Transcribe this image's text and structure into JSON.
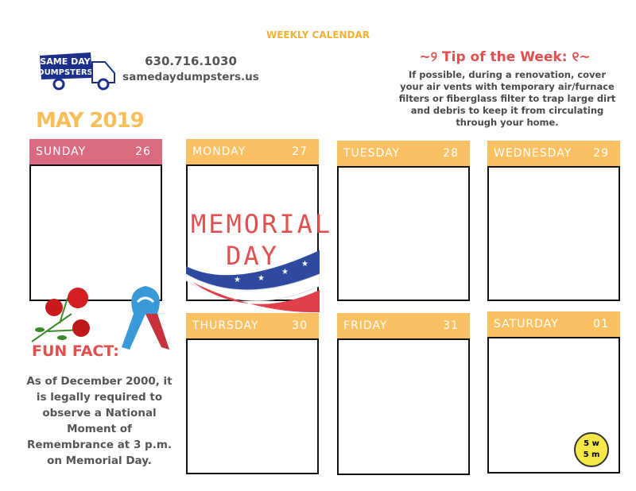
{
  "header": {
    "title": "WEEKLY CALENDAR",
    "phone": "630.716.1030",
    "website": "samedaydumpsters.us",
    "logo_text": "SAME DAY DUMPSTERS",
    "month": "MAY 2019"
  },
  "tip": {
    "title": "Tip of the Week:",
    "text": "If possible, during a renovation, cover your air vents with temporary air/furnace filters or fiberglass filter to trap large dirt and debris to keep it from circulating through your home."
  },
  "days": [
    {
      "name": "SUNDAY",
      "date": "26"
    },
    {
      "name": "MONDAY",
      "date": "27"
    },
    {
      "name": "TUESDAY",
      "date": "28"
    },
    {
      "name": "WEDNESDAY",
      "date": "29"
    },
    {
      "name": "THURSDAY",
      "date": "30"
    },
    {
      "name": "FRIDAY",
      "date": "31"
    },
    {
      "name": "SATURDAY",
      "date": "01"
    }
  ],
  "memorial": {
    "line1": "MEMORIAL",
    "line2": "DAY"
  },
  "fun_fact": {
    "title": "FUN FACT:",
    "text": "As of December 2000, it is legally required to observe a National Moment of Remembrance at 3 p.m. on Memorial Day."
  },
  "badge": {
    "line1": "5 w",
    "line2": "5 m"
  },
  "colors": {
    "header_orange": "#fbc061",
    "sunday_pink": "#d96a80",
    "accent_red": "#e0504f",
    "month_gold": "#f7be5a"
  }
}
